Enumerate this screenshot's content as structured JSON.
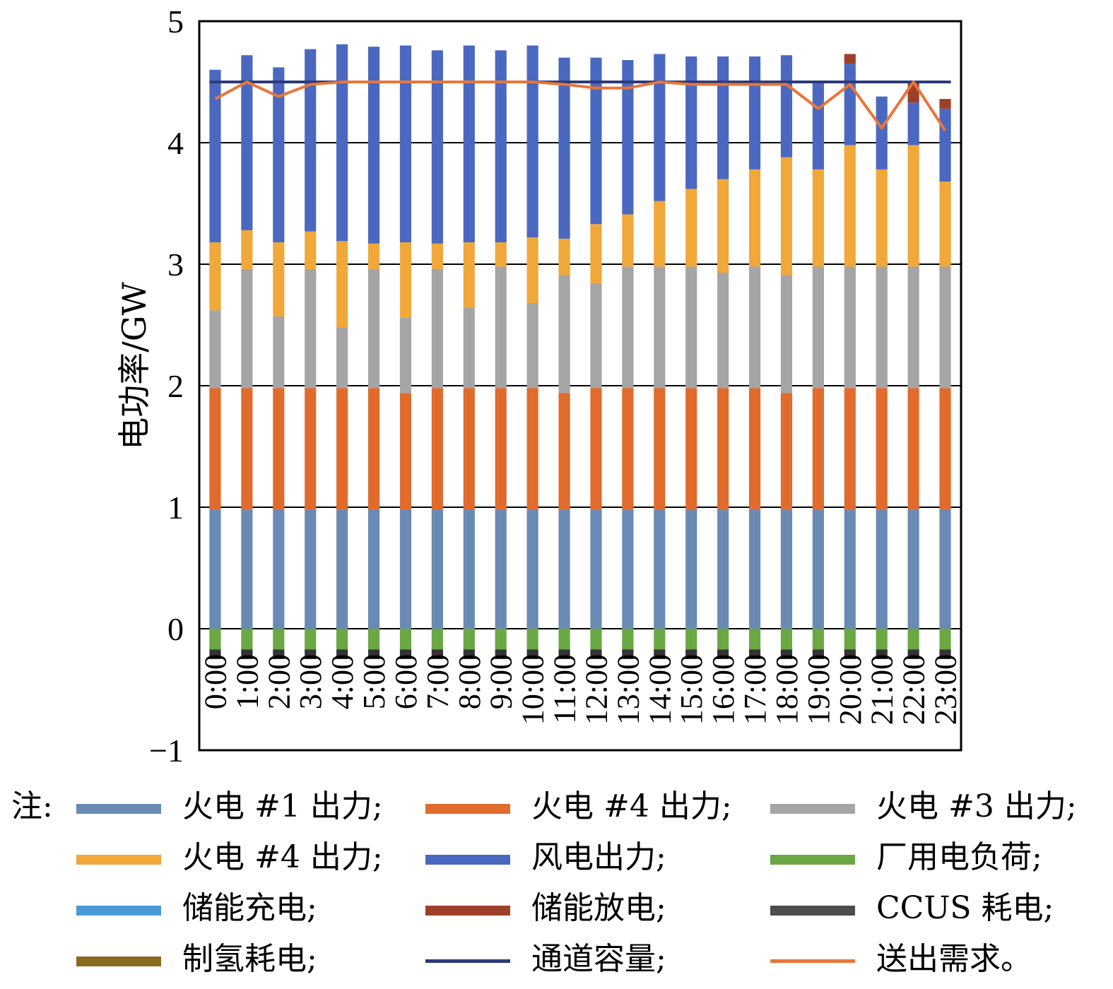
{
  "chart_data": {
    "type": "bar",
    "stacked": true,
    "ylabel": "电功率/GW",
    "ylim": [
      -1,
      5
    ],
    "yticks": [
      "−1",
      "0",
      "1",
      "2",
      "3",
      "4",
      "5"
    ],
    "categories": [
      "0:00",
      "1:00",
      "2:00",
      "3:00",
      "4:00",
      "5:00",
      "6:00",
      "7:00",
      "8:00",
      "9:00",
      "10:00",
      "11:00",
      "12:00",
      "13:00",
      "14:00",
      "15:00",
      "16:00",
      "17:00",
      "18:00",
      "19:00",
      "20:00",
      "21:00",
      "22:00",
      "23:00"
    ],
    "grid": true,
    "series": [
      {
        "name": "火电 #1 出力",
        "kind": "bar",
        "color": "#6a8ab4",
        "values": [
          0.98,
          0.98,
          0.98,
          0.98,
          0.98,
          0.98,
          0.98,
          0.98,
          0.98,
          0.98,
          0.98,
          0.98,
          0.98,
          0.98,
          0.98,
          0.98,
          0.98,
          0.98,
          0.98,
          0.98,
          0.98,
          0.98,
          0.98,
          0.98
        ]
      },
      {
        "name": "火电 #4 出力",
        "kind": "bar",
        "color": "#e06b2c",
        "values": [
          1.0,
          1.0,
          1.0,
          1.0,
          1.0,
          1.0,
          0.96,
          1.0,
          1.0,
          1.0,
          1.0,
          0.96,
          1.0,
          1.0,
          1.0,
          1.0,
          1.0,
          1.0,
          0.96,
          1.0,
          1.0,
          1.0,
          1.0,
          1.0
        ]
      },
      {
        "name": "火电 #3 出力",
        "kind": "bar",
        "color": "#a5a5a5",
        "values": [
          0.64,
          0.98,
          0.59,
          0.98,
          0.5,
          0.98,
          0.62,
          0.98,
          0.66,
          1.0,
          0.7,
          0.97,
          0.86,
          1.0,
          1.0,
          1.0,
          0.95,
          1.0,
          0.97,
          1.0,
          1.0,
          1.0,
          1.0,
          1.0
        ]
      },
      {
        "name": "火电 #4 出力",
        "kind": "bar",
        "color": "#f0a83a",
        "values": [
          0.56,
          0.32,
          0.61,
          0.31,
          0.71,
          0.21,
          0.62,
          0.21,
          0.54,
          0.2,
          0.54,
          0.3,
          0.49,
          0.43,
          0.54,
          0.64,
          0.77,
          0.8,
          0.97,
          0.8,
          1.0,
          0.8,
          1.0,
          0.7
        ]
      },
      {
        "name": "风电出力",
        "kind": "bar",
        "color": "#4a68c0",
        "values": [
          1.42,
          1.44,
          1.44,
          1.5,
          1.62,
          1.62,
          1.62,
          1.59,
          1.62,
          1.58,
          1.58,
          1.49,
          1.37,
          1.27,
          1.21,
          1.09,
          1.01,
          0.93,
          0.84,
          0.72,
          0.67,
          0.6,
          0.35,
          0.6
        ]
      },
      {
        "name": "厂用电负荷",
        "kind": "bar",
        "color": "#6aa843",
        "values": [
          -0.17,
          -0.17,
          -0.17,
          -0.17,
          -0.17,
          -0.17,
          -0.17,
          -0.17,
          -0.17,
          -0.17,
          -0.17,
          -0.17,
          -0.17,
          -0.17,
          -0.17,
          -0.17,
          -0.17,
          -0.17,
          -0.17,
          -0.17,
          -0.17,
          -0.17,
          -0.17,
          -0.17
        ]
      },
      {
        "name": "储能充电",
        "kind": "bar",
        "color": "#4a9ad8",
        "values": [
          0,
          0,
          0,
          0,
          0,
          0,
          0,
          0,
          0,
          0,
          0,
          0,
          0,
          0,
          0,
          0,
          0,
          0,
          0,
          0,
          0,
          0,
          0,
          0
        ]
      },
      {
        "name": "储能放电",
        "kind": "bar",
        "color": "#9e3f2a",
        "values": [
          0,
          0,
          0,
          0,
          0,
          0,
          0,
          0,
          0,
          0,
          0,
          0,
          0,
          0,
          0,
          0,
          0,
          0,
          0,
          0,
          0.08,
          0,
          0.18,
          0.08
        ]
      },
      {
        "name": "CCUS 耗电",
        "kind": "bar",
        "color": "#333333",
        "values": [
          -0.08,
          -0.08,
          -0.08,
          -0.08,
          -0.08,
          -0.08,
          -0.08,
          -0.08,
          -0.08,
          -0.08,
          -0.08,
          -0.08,
          -0.08,
          -0.08,
          -0.08,
          -0.08,
          -0.08,
          -0.08,
          -0.08,
          -0.08,
          -0.08,
          -0.08,
          -0.08,
          -0.08
        ]
      },
      {
        "name": "制氢耗电",
        "kind": "bar",
        "color": "#8a6a1e",
        "values": [
          0,
          0,
          0,
          0,
          0,
          0,
          0,
          0,
          0,
          0,
          0,
          0,
          0,
          0,
          0,
          0,
          0,
          0,
          0,
          0,
          0,
          0,
          0,
          0
        ]
      },
      {
        "name": "通道容量",
        "kind": "line",
        "color": "#2b3a7a",
        "values": [
          4.5,
          4.5,
          4.5,
          4.5,
          4.5,
          4.5,
          4.5,
          4.5,
          4.5,
          4.5,
          4.5,
          4.5,
          4.5,
          4.5,
          4.5,
          4.5,
          4.5,
          4.5,
          4.5,
          4.5,
          4.5,
          4.5,
          4.5,
          4.5
        ]
      },
      {
        "name": "送出需求",
        "kind": "line",
        "color": "#e8763a",
        "values": [
          4.36,
          4.5,
          4.38,
          4.48,
          4.5,
          4.5,
          4.5,
          4.5,
          4.5,
          4.5,
          4.5,
          4.48,
          4.45,
          4.45,
          4.5,
          4.48,
          4.48,
          4.48,
          4.48,
          4.28,
          4.48,
          4.12,
          4.5,
          4.1
        ]
      }
    ]
  },
  "legend": {
    "note_label": "注:",
    "items": [
      {
        "label": "火电 #1 出力;",
        "color": "#6a8ab4"
      },
      {
        "label": "火电 #4 出力;",
        "color": "#e06b2c"
      },
      {
        "label": "火电 #3 出力;",
        "color": "#a5a5a5"
      },
      {
        "label": "火电 #4 出力;",
        "color": "#f0a83a"
      },
      {
        "label": "风电出力;",
        "color": "#4a68c0"
      },
      {
        "label": "厂用电负荷;",
        "color": "#6aa843"
      },
      {
        "label": "储能充电;",
        "color": "#4a9ad8"
      },
      {
        "label": "储能放电;",
        "color": "#9e3f2a"
      },
      {
        "label": "CCUS 耗电;",
        "color": "#4d4d4d"
      },
      {
        "label": "制氢耗电;",
        "color": "#8a6a1e"
      },
      {
        "label": "通道容量;",
        "color": "#2b3a7a"
      },
      {
        "label": "送出需求。",
        "color": "#e8763a"
      }
    ]
  }
}
